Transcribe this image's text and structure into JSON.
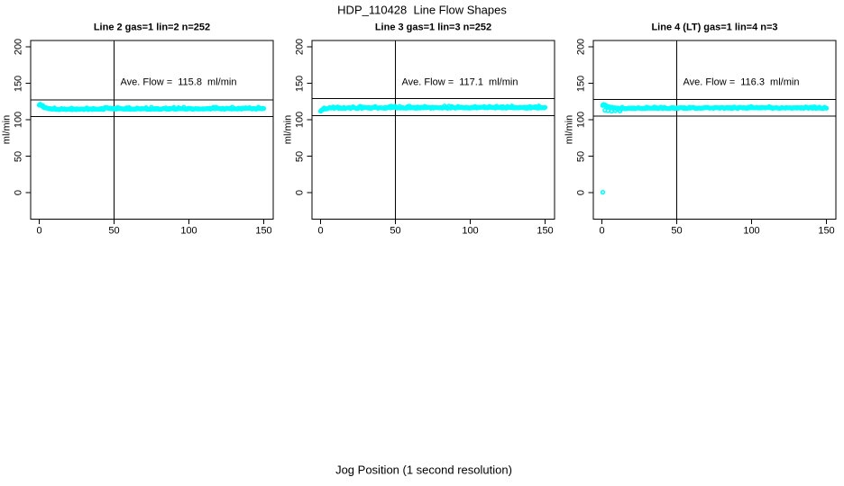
{
  "page": {
    "title": "HDP_110428  Line Flow Shapes",
    "xlabel": "Jog Position (1 second resolution)",
    "background": "#ffffff",
    "axis_color": "#000000"
  },
  "chart_data": {
    "type": "scatter",
    "layout": "1x3",
    "shared": {
      "xlim": [
        0,
        150
      ],
      "ylim": [
        0,
        200
      ],
      "xticks": [
        0,
        50,
        100,
        150
      ],
      "yticks": [
        0,
        50,
        100,
        150,
        200
      ],
      "ylabel": "ml/min",
      "xlabel": "Jog Position (1 second resolution)",
      "point_color": "#00ffff",
      "ref_vline_x": 50,
      "grid": false,
      "legend": "none"
    },
    "panels": [
      {
        "title": "Line 2 gas=1 lin=2 n=252",
        "line": 2,
        "gas": 1,
        "lin": 2,
        "n": 252,
        "ave_flow": 115.8,
        "ave_flow_text": "Ave. Flow =  115.8  ml/min",
        "ref_hlines": [
          127.4,
          104.2
        ],
        "flow_profile_breakpoints": [
          [
            0,
            120.5
          ],
          [
            0.8,
            121.2
          ],
          [
            1.6,
            119.5
          ],
          [
            3,
            117.0
          ],
          [
            5,
            115.8
          ],
          [
            9,
            114.6
          ],
          [
            15,
            114.2
          ],
          [
            30,
            114.4
          ],
          [
            60,
            114.8
          ],
          [
            100,
            115.0
          ],
          [
            150,
            115.3
          ]
        ],
        "outlier_points": [],
        "jitter": 0.7,
        "spike": 1.4,
        "spike_threshold": 0.78,
        "seed": 7
      },
      {
        "title": "Line 3 gas=1 lin=3 n=252",
        "line": 3,
        "gas": 1,
        "lin": 3,
        "n": 252,
        "ave_flow": 117.1,
        "ave_flow_text": "Ave. Flow =  117.1  ml/min",
        "ref_hlines": [
          128.8,
          105.4
        ],
        "flow_profile_breakpoints": [
          [
            0,
            111.8
          ],
          [
            1,
            113.8
          ],
          [
            2.5,
            115.2
          ],
          [
            6,
            115.9
          ],
          [
            15,
            116.1
          ],
          [
            40,
            116.3
          ],
          [
            80,
            116.5
          ],
          [
            120,
            116.6
          ],
          [
            150,
            116.4
          ]
        ],
        "outlier_points": [],
        "jitter": 0.7,
        "spike": 1.7,
        "spike_threshold": 0.7,
        "seed": 13
      },
      {
        "title": "Line 4 (LT) gas=1 lin=4 n=3",
        "line": 4,
        "line_suffix": "(LT)",
        "gas": 1,
        "lin": 4,
        "n": 3,
        "ave_flow": 116.3,
        "ave_flow_text": "Ave. Flow =  116.3  ml/min",
        "ref_hlines": [
          127.9,
          104.7
        ],
        "flow_profile_breakpoints": [
          [
            0.5,
            119.8
          ],
          [
            1.2,
            120.6
          ],
          [
            2.5,
            119.6
          ],
          [
            4,
            117.6
          ],
          [
            7,
            116.2
          ],
          [
            12,
            115.6
          ],
          [
            25,
            115.8
          ],
          [
            60,
            116.1
          ],
          [
            100,
            116.3
          ],
          [
            150,
            116.1
          ]
        ],
        "outlier_points": [
          [
            0.6,
            0.5
          ],
          [
            2,
            113.0
          ],
          [
            4,
            112.3
          ],
          [
            6.5,
            111.8
          ],
          [
            9,
            112.4
          ],
          [
            12,
            112.1
          ]
        ],
        "jitter": 0.65,
        "spike": 1.2,
        "spike_threshold": 0.85,
        "seed": 21
      }
    ]
  }
}
